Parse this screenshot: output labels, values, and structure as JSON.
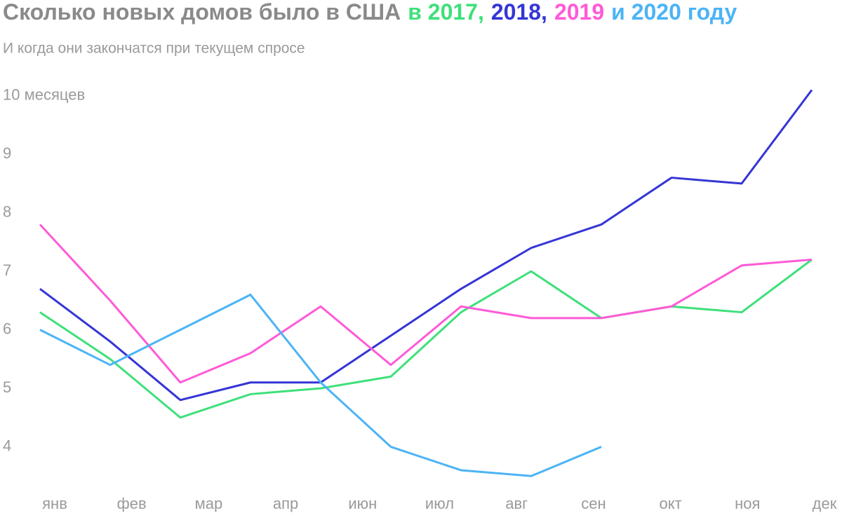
{
  "chart_data": {
    "type": "line",
    "title_parts": [
      {
        "text": "Сколько новых домов было в США",
        "color": "#8a8a8a"
      },
      {
        "text": "в 2017,",
        "color": "#3ee07a"
      },
      {
        "text": "2018,",
        "color": "#3535d6"
      },
      {
        "text": "2019",
        "color": "#ff5ad8"
      },
      {
        "text": "и 2020 году",
        "color": "#4cb4f5"
      }
    ],
    "subtitle": "И когда они закончатся при текущем спросе",
    "categories": [
      "янв",
      "фев",
      "мар",
      "апр",
      null,
      "июн",
      "июл",
      "авг",
      "сен",
      "окт",
      "ноя",
      "дек"
    ],
    "series": [
      {
        "name": "2017",
        "color": "#3ee07a",
        "values": [
          6.3,
          5.5,
          4.5,
          4.9,
          5.0,
          5.2,
          6.3,
          7.0,
          6.2,
          6.4,
          6.3,
          7.2
        ]
      },
      {
        "name": "2018",
        "color": "#3535d6",
        "values": [
          6.7,
          5.8,
          4.8,
          5.1,
          5.1,
          5.9,
          6.7,
          7.4,
          7.8,
          8.6,
          8.5,
          10.1
        ]
      },
      {
        "name": "2019",
        "color": "#ff5ad8",
        "values": [
          7.8,
          6.5,
          5.1,
          5.6,
          6.4,
          5.4,
          6.4,
          6.2,
          6.2,
          6.4,
          7.1,
          7.2
        ]
      },
      {
        "name": "2020",
        "color": "#4cb4f5",
        "values": [
          6.0,
          5.4,
          6.0,
          6.6,
          5.1,
          4.0,
          3.6,
          3.5,
          4.0,
          null,
          null,
          null
        ]
      }
    ],
    "ylim": [
      3.3,
      10.2
    ],
    "yticks": [
      4,
      5,
      6,
      7,
      8,
      9,
      {
        "value": 10,
        "label": "10 месяцев"
      }
    ],
    "grid": false
  }
}
